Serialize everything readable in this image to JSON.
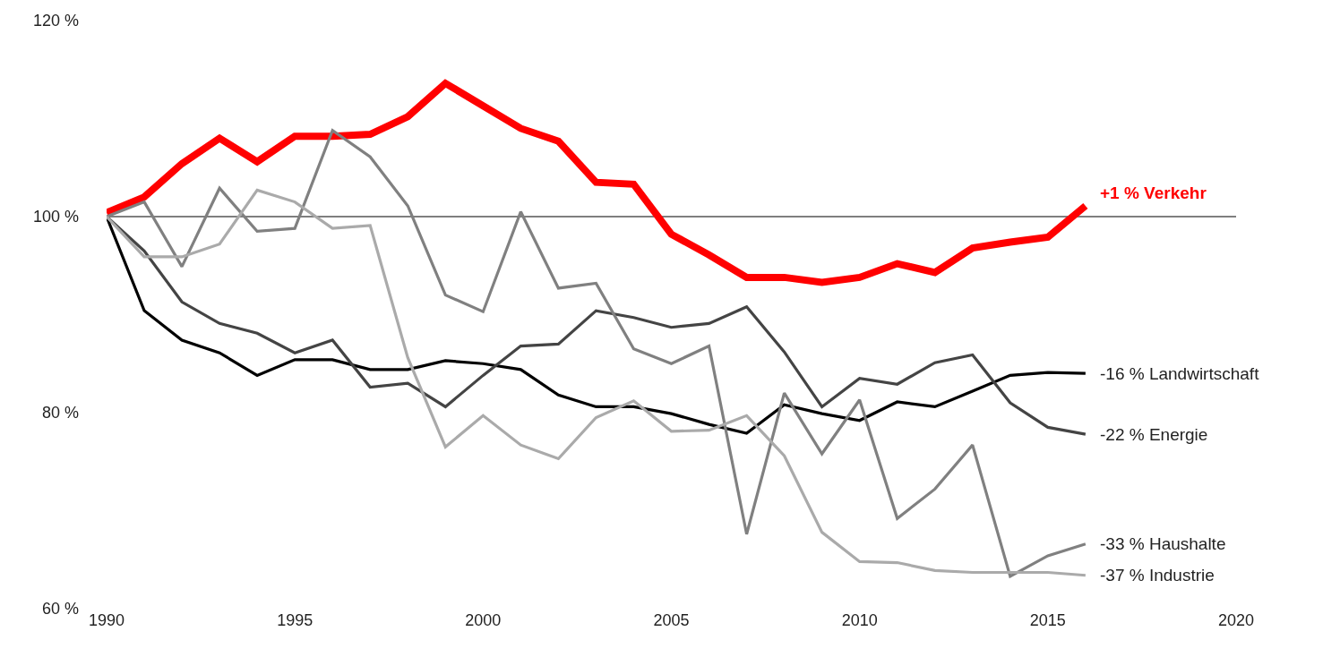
{
  "chart_data": {
    "type": "line",
    "x": [
      1990,
      1991,
      1992,
      1993,
      1994,
      1995,
      1996,
      1997,
      1998,
      1999,
      2000,
      2001,
      2002,
      2003,
      2004,
      2005,
      2006,
      2007,
      2008,
      2009,
      2010,
      2011,
      2012,
      2013,
      2014,
      2015,
      2016
    ],
    "series": [
      {
        "name": "+1 % Verkehr",
        "color": "#ff0000",
        "values": [
          100.4,
          102,
          105.4,
          108,
          105.6,
          108.2,
          108.2,
          108.4,
          110.2,
          113.6,
          111.3,
          109,
          107.7,
          103.5,
          103.3,
          98.2,
          96.1,
          93.8,
          93.8,
          93.3,
          93.8,
          95.2,
          94.3,
          96.8,
          97.4,
          97.9,
          101.1
        ]
      },
      {
        "name": "-16 % Landwirtschaft",
        "color": "#000000",
        "values": [
          100,
          90.4,
          87.4,
          86.1,
          83.8,
          85.4,
          85.4,
          84.4,
          84.4,
          85.3,
          85,
          84.4,
          81.8,
          80.6,
          80.6,
          79.9,
          78.8,
          77.9,
          80.8,
          79.9,
          79.2,
          81.1,
          80.6,
          82.2,
          83.8,
          84.1,
          84
        ]
      },
      {
        "name": "-22 % Energie",
        "color": "#444444",
        "values": [
          100,
          96.5,
          91.3,
          89.1,
          88.1,
          86.1,
          87.4,
          82.6,
          83,
          80.6,
          83.8,
          86.8,
          87,
          90.4,
          89.7,
          88.7,
          89.1,
          90.8,
          86.2,
          80.6,
          83.5,
          82.9,
          85.1,
          85.9,
          81,
          78.5,
          77.8
        ]
      },
      {
        "name": "-33 % Haushalte",
        "color": "#808080",
        "values": [
          100,
          101.5,
          94.9,
          102.9,
          98.5,
          98.8,
          108.8,
          106.1,
          101.1,
          92,
          90.3,
          100.5,
          92.7,
          93.2,
          86.5,
          85,
          86.8,
          67.6,
          82,
          75.8,
          81.3,
          69.2,
          72.2,
          76.7,
          63.3,
          65.4,
          66.6
        ]
      },
      {
        "name": "-37 % Industrie",
        "color": "#aaaaaa",
        "values": [
          100,
          95.9,
          95.9,
          97.2,
          102.7,
          101.5,
          98.8,
          99.1,
          85.6,
          76.5,
          79.7,
          76.7,
          75.3,
          79.5,
          81.2,
          78.1,
          78.2,
          79.7,
          75.6,
          67.8,
          64.8,
          64.7,
          63.9,
          63.7,
          63.7,
          63.7,
          63.4
        ]
      }
    ],
    "xlim": [
      1990,
      2020
    ],
    "xticks": [
      1990,
      1995,
      2000,
      2005,
      2010,
      2015,
      2020
    ],
    "ylim": [
      60,
      120
    ],
    "yticks": [
      {
        "value": 60,
        "label": "60 %"
      },
      {
        "value": 80,
        "label": "80 %"
      },
      {
        "value": 100,
        "label": "100 %"
      },
      {
        "value": 120,
        "label": "120 %"
      }
    ],
    "ref_lines": [
      {
        "axis": "y",
        "value": 100,
        "color": "#555555"
      }
    ],
    "grid": false,
    "legend": false,
    "marker": "none",
    "line_style": "solid"
  }
}
